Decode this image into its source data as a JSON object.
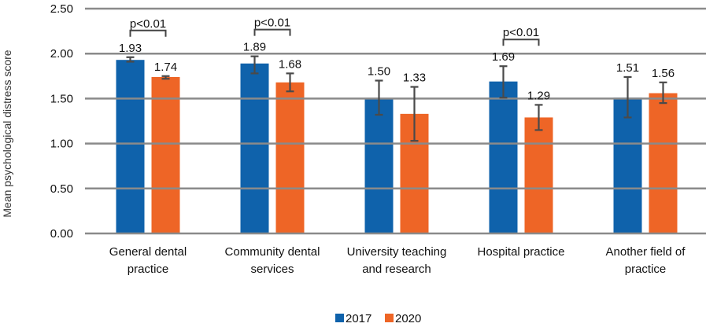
{
  "chart_data": {
    "type": "bar",
    "title": "",
    "xlabel": "",
    "ylabel": "Mean psychological distress score",
    "ylim": [
      0,
      2.5
    ],
    "yticks": [
      0.0,
      0.5,
      1.0,
      1.5,
      2.0,
      2.5
    ],
    "ytick_labels": [
      "0.00",
      "0.50",
      "1.00",
      "1.50",
      "2.00",
      "2.50"
    ],
    "grid": true,
    "legend_position": "bottom-center",
    "categories": [
      [
        "General dental",
        "practice"
      ],
      [
        "Community dental",
        "services"
      ],
      [
        "University teaching",
        "and research"
      ],
      [
        "Hospital practice"
      ],
      [
        "Another field of",
        "practice"
      ]
    ],
    "series": [
      {
        "name": "2017",
        "color": "#0F62AB",
        "values": [
          1.93,
          1.89,
          1.5,
          1.69,
          1.51
        ],
        "value_labels": [
          "1.93",
          "1.89",
          "1.50",
          "1.69",
          "1.51"
        ],
        "error_low": [
          1.91,
          1.78,
          1.32,
          1.51,
          1.29
        ],
        "error_high": [
          1.96,
          1.97,
          1.7,
          1.86,
          1.74
        ]
      },
      {
        "name": "2020",
        "color": "#EE6526",
        "values": [
          1.74,
          1.68,
          1.33,
          1.29,
          1.56
        ],
        "value_labels": [
          "1.74",
          "1.68",
          "1.33",
          "1.29",
          "1.56"
        ],
        "error_low": [
          1.72,
          1.58,
          1.03,
          1.15,
          1.45
        ],
        "error_high": [
          1.75,
          1.78,
          1.63,
          1.43,
          1.68
        ]
      }
    ],
    "annotations": [
      {
        "category_index": 0,
        "text": "p<0.01"
      },
      {
        "category_index": 1,
        "text": "p<0.01"
      },
      {
        "category_index": 3,
        "text": "p<0.01"
      }
    ],
    "grid_color": "#8a8a8a",
    "error_bar_color": "#4a4a4a"
  }
}
